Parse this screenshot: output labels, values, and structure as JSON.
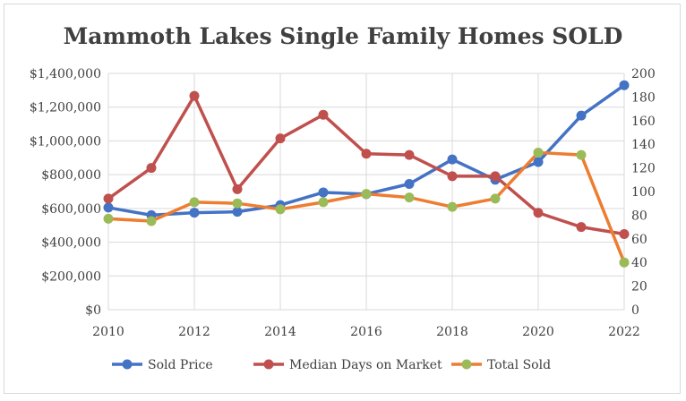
{
  "chart_data": {
    "type": "line",
    "title": "Mammoth Lakes Single Family Homes SOLD",
    "x": [
      2010,
      2011,
      2012,
      2013,
      2014,
      2015,
      2016,
      2017,
      2018,
      2019,
      2020,
      2021,
      2022
    ],
    "x_ticks": [
      "2010",
      "2012",
      "2014",
      "2016",
      "2018",
      "2020",
      "2022"
    ],
    "xlim": [
      2010,
      2022
    ],
    "y_left": {
      "ylim": [
        0,
        1400000
      ],
      "ticks": [
        "$0",
        "$200,000",
        "$400,000",
        "$600,000",
        "$800,000",
        "$1,000,000",
        "$1,200,000",
        "$1,400,000"
      ]
    },
    "y_right": {
      "ylim": [
        0,
        200
      ],
      "ticks": [
        "0",
        "20",
        "40",
        "60",
        "80",
        "100",
        "120",
        "140",
        "160",
        "180",
        "200"
      ]
    },
    "grid": true,
    "legend_position": "bottom",
    "series": [
      {
        "name": "Sold Price",
        "axis": "left",
        "color": "#4472c4",
        "values": [
          605000,
          560000,
          575000,
          580000,
          620000,
          695000,
          685000,
          745000,
          890000,
          770000,
          875000,
          1150000,
          1330000
        ]
      },
      {
        "name": "Median Days on Market",
        "axis": "right",
        "color": "#c0504d",
        "values": [
          94,
          120,
          181,
          102,
          145,
          165,
          132,
          131,
          113,
          113,
          82,
          70,
          64
        ]
      },
      {
        "name": "Total Sold",
        "axis": "right",
        "color": "#ed7d31",
        "marker_color": "#9bbb59",
        "values": [
          77,
          75,
          91,
          90,
          85,
          91,
          98,
          95,
          87,
          94,
          133,
          131,
          40
        ]
      }
    ]
  }
}
